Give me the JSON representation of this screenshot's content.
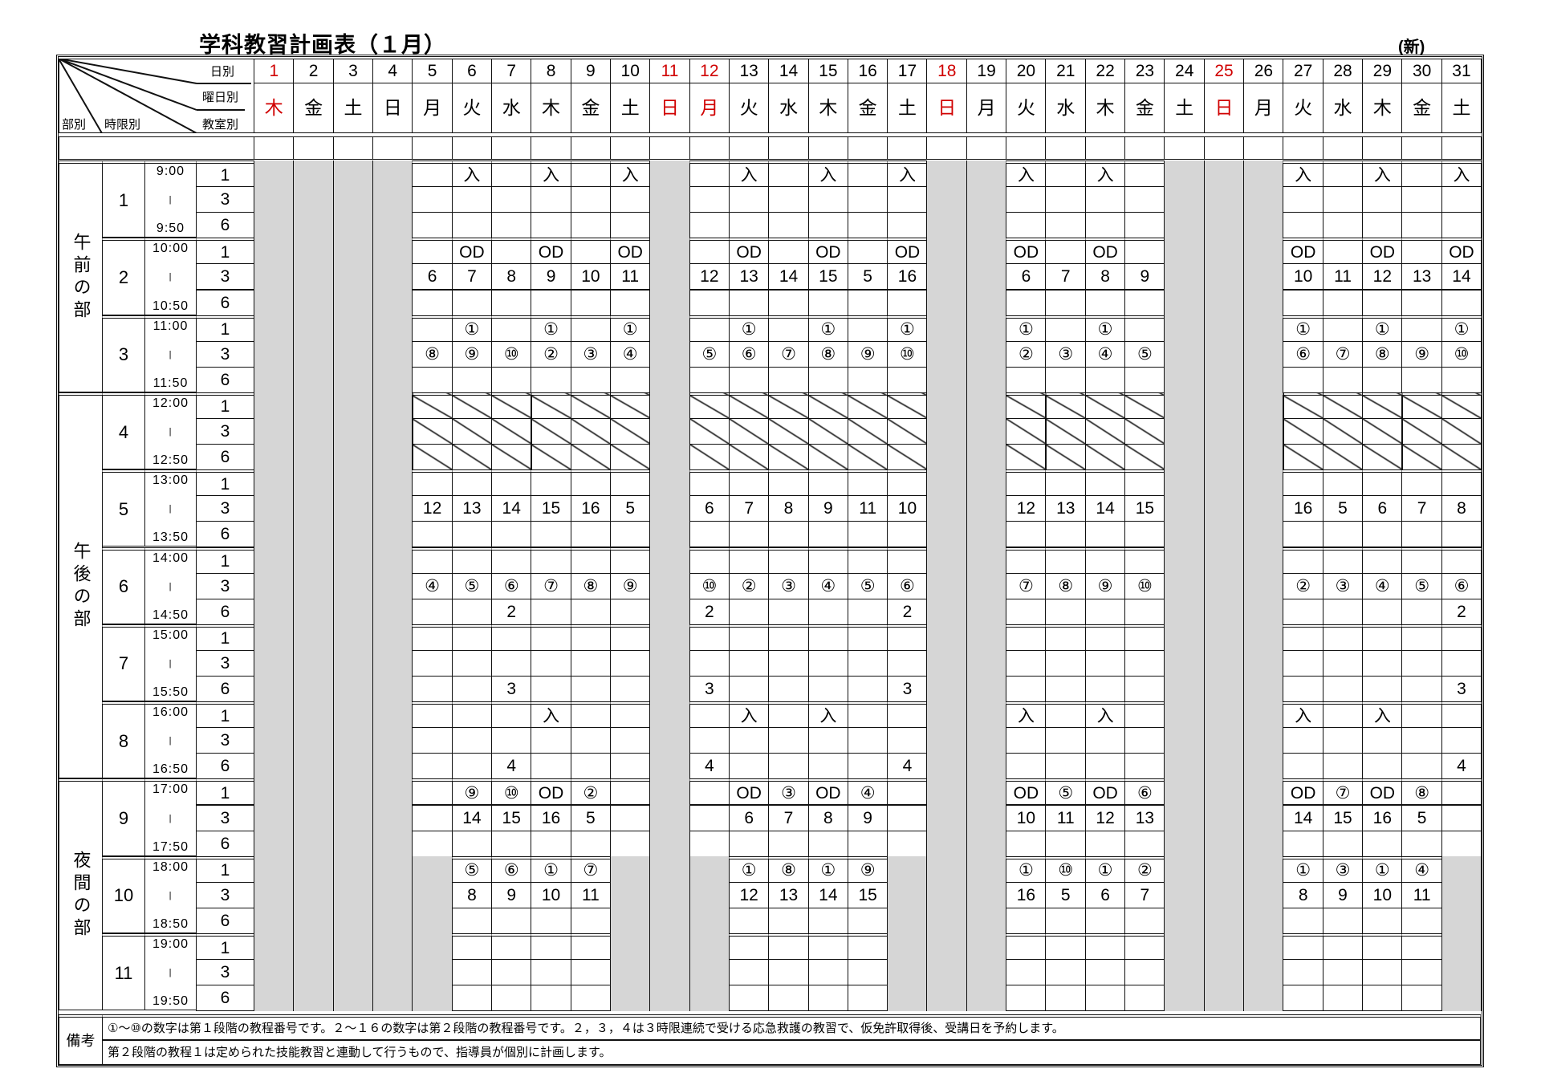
{
  "title": "学科教習計画表（１月）",
  "edition_mark": "(新)",
  "header": {
    "day_label": "日別",
    "weekday_label": "曜日別",
    "room_label": "教室別",
    "section_label": "部別",
    "period_label": "時限別"
  },
  "colors": {
    "holiday": "#d00000",
    "closed": "#d6d6d6"
  },
  "days": [
    {
      "date": "1",
      "weekday": "木",
      "holiday": true
    },
    {
      "date": "2",
      "weekday": "金",
      "holiday": false
    },
    {
      "date": "3",
      "weekday": "土",
      "holiday": false
    },
    {
      "date": "4",
      "weekday": "日",
      "holiday": false
    },
    {
      "date": "5",
      "weekday": "月",
      "holiday": false
    },
    {
      "date": "6",
      "weekday": "火",
      "holiday": false
    },
    {
      "date": "7",
      "weekday": "水",
      "holiday": false
    },
    {
      "date": "8",
      "weekday": "木",
      "holiday": false
    },
    {
      "date": "9",
      "weekday": "金",
      "holiday": false
    },
    {
      "date": "10",
      "weekday": "土",
      "holiday": false
    },
    {
      "date": "11",
      "weekday": "日",
      "holiday": true
    },
    {
      "date": "12",
      "weekday": "月",
      "holiday": true
    },
    {
      "date": "13",
      "weekday": "火",
      "holiday": false
    },
    {
      "date": "14",
      "weekday": "水",
      "holiday": false
    },
    {
      "date": "15",
      "weekday": "木",
      "holiday": false
    },
    {
      "date": "16",
      "weekday": "金",
      "holiday": false
    },
    {
      "date": "17",
      "weekday": "土",
      "holiday": false
    },
    {
      "date": "18",
      "weekday": "日",
      "holiday": true
    },
    {
      "date": "19",
      "weekday": "月",
      "holiday": false
    },
    {
      "date": "20",
      "weekday": "火",
      "holiday": false
    },
    {
      "date": "21",
      "weekday": "水",
      "holiday": false
    },
    {
      "date": "22",
      "weekday": "木",
      "holiday": false
    },
    {
      "date": "23",
      "weekday": "金",
      "holiday": false
    },
    {
      "date": "24",
      "weekday": "土",
      "holiday": false
    },
    {
      "date": "25",
      "weekday": "日",
      "holiday": true
    },
    {
      "date": "26",
      "weekday": "月",
      "holiday": false
    },
    {
      "date": "27",
      "weekday": "火",
      "holiday": false
    },
    {
      "date": "28",
      "weekday": "水",
      "holiday": false
    },
    {
      "date": "29",
      "weekday": "木",
      "holiday": false
    },
    {
      "date": "30",
      "weekday": "金",
      "holiday": false
    },
    {
      "date": "31",
      "weekday": "土",
      "holiday": false
    }
  ],
  "rooms": [
    "1",
    "3",
    "6"
  ],
  "sections": [
    {
      "label": "午前の部",
      "periods": [
        1,
        2,
        3
      ]
    },
    {
      "label": "午後の部",
      "periods": [
        4,
        5,
        6,
        7,
        8
      ]
    },
    {
      "label": "夜間の部",
      "periods": [
        9,
        10,
        11
      ]
    }
  ],
  "periods": [
    {
      "num": "1",
      "start": "9:00",
      "sep": "|",
      "end": "9:50",
      "open_days": [
        5,
        6,
        7,
        8,
        9,
        10,
        12,
        13,
        14,
        15,
        16,
        17,
        20,
        21,
        22,
        23,
        27,
        28,
        29,
        30,
        31
      ],
      "hatched": false,
      "rows": [
        {
          "6": "入",
          "8": "入",
          "10": "入",
          "13": "入",
          "15": "入",
          "17": "入",
          "20": "入",
          "22": "入",
          "27": "入",
          "29": "入",
          "31": "入"
        },
        {},
        {}
      ]
    },
    {
      "num": "2",
      "start": "10:00",
      "sep": "|",
      "end": "10:50",
      "open_days": [
        5,
        6,
        7,
        8,
        9,
        10,
        12,
        13,
        14,
        15,
        16,
        17,
        20,
        21,
        22,
        23,
        27,
        28,
        29,
        30,
        31
      ],
      "hatched": false,
      "rows": [
        {
          "6": "OD",
          "8": "OD",
          "10": "OD",
          "13": "OD",
          "15": "OD",
          "17": "OD",
          "20": "OD",
          "22": "OD",
          "27": "OD",
          "29": "OD",
          "31": "OD"
        },
        {
          "5": "6",
          "6": "7",
          "7": "8",
          "8": "9",
          "9": "10",
          "10": "11",
          "12": "12",
          "13": "13",
          "14": "14",
          "15": "15",
          "16": "5",
          "17": "16",
          "20": "6",
          "21": "7",
          "22": "8",
          "23": "9",
          "27": "10",
          "28": "11",
          "29": "12",
          "30": "13",
          "31": "14"
        },
        {}
      ]
    },
    {
      "num": "3",
      "start": "11:00",
      "sep": "|",
      "end": "11:50",
      "open_days": [
        5,
        6,
        7,
        8,
        9,
        10,
        12,
        13,
        14,
        15,
        16,
        17,
        20,
        21,
        22,
        23,
        27,
        28,
        29,
        30,
        31
      ],
      "hatched": false,
      "rows": [
        {
          "6": "①",
          "8": "①",
          "10": "①",
          "13": "①",
          "15": "①",
          "17": "①",
          "20": "①",
          "22": "①",
          "27": "①",
          "29": "①",
          "31": "①"
        },
        {
          "5": "⑧",
          "6": "⑨",
          "7": "⑩",
          "8": "②",
          "9": "③",
          "10": "④",
          "12": "⑤",
          "13": "⑥",
          "14": "⑦",
          "15": "⑧",
          "16": "⑨",
          "17": "⑩",
          "20": "②",
          "21": "③",
          "22": "④",
          "23": "⑤",
          "27": "⑥",
          "28": "⑦",
          "29": "⑧",
          "30": "⑨",
          "31": "⑩"
        },
        {}
      ]
    },
    {
      "num": "4",
      "start": "12:00",
      "sep": "|",
      "end": "12:50",
      "open_days": [
        5,
        6,
        7,
        8,
        9,
        10,
        12,
        13,
        14,
        15,
        16,
        17,
        20,
        21,
        22,
        23,
        27,
        28,
        29,
        30,
        31
      ],
      "hatched": true,
      "rows": [
        {},
        {},
        {}
      ]
    },
    {
      "num": "5",
      "start": "13:00",
      "sep": "|",
      "end": "13:50",
      "open_days": [
        5,
        6,
        7,
        8,
        9,
        10,
        12,
        13,
        14,
        15,
        16,
        17,
        20,
        21,
        22,
        23,
        27,
        28,
        29,
        30,
        31
      ],
      "hatched": false,
      "rows": [
        {},
        {
          "5": "12",
          "6": "13",
          "7": "14",
          "8": "15",
          "9": "16",
          "10": "5",
          "12": "6",
          "13": "7",
          "14": "8",
          "15": "9",
          "16": "11",
          "17": "10",
          "20": "12",
          "21": "13",
          "22": "14",
          "23": "15",
          "27": "16",
          "28": "5",
          "29": "6",
          "30": "7",
          "31": "8"
        },
        {}
      ]
    },
    {
      "num": "6",
      "start": "14:00",
      "sep": "|",
      "end": "14:50",
      "open_days": [
        5,
        6,
        7,
        8,
        9,
        10,
        12,
        13,
        14,
        15,
        16,
        17,
        20,
        21,
        22,
        23,
        27,
        28,
        29,
        30,
        31
      ],
      "hatched": false,
      "rows": [
        {},
        {
          "5": "④",
          "6": "⑤",
          "7": "⑥",
          "8": "⑦",
          "9": "⑧",
          "10": "⑨",
          "12": "⑩",
          "13": "②",
          "14": "③",
          "15": "④",
          "16": "⑤",
          "17": "⑥",
          "20": "⑦",
          "21": "⑧",
          "22": "⑨",
          "23": "⑩",
          "27": "②",
          "28": "③",
          "29": "④",
          "30": "⑤",
          "31": "⑥"
        },
        {
          "7": "2",
          "12": "2",
          "17": "2",
          "31": "2"
        }
      ]
    },
    {
      "num": "7",
      "start": "15:00",
      "sep": "|",
      "end": "15:50",
      "open_days": [
        5,
        6,
        7,
        8,
        9,
        10,
        12,
        13,
        14,
        15,
        16,
        17,
        20,
        21,
        22,
        23,
        27,
        28,
        29,
        30,
        31
      ],
      "hatched": false,
      "rows": [
        {},
        {},
        {
          "7": "3",
          "12": "3",
          "17": "3",
          "31": "3"
        }
      ]
    },
    {
      "num": "8",
      "start": "16:00",
      "sep": "|",
      "end": "16:50",
      "open_days": [
        5,
        6,
        7,
        8,
        9,
        10,
        12,
        13,
        14,
        15,
        16,
        17,
        20,
        21,
        22,
        23,
        27,
        28,
        29,
        30,
        31
      ],
      "hatched": false,
      "rows": [
        {
          "8": "入",
          "13": "入",
          "15": "入",
          "20": "入",
          "22": "入",
          "27": "入",
          "29": "入"
        },
        {},
        {
          "7": "4",
          "12": "4",
          "17": "4",
          "31": "4"
        }
      ]
    },
    {
      "num": "9",
      "start": "17:00",
      "sep": "|",
      "end": "17:50",
      "open_days": [
        5,
        6,
        7,
        8,
        9,
        10,
        12,
        13,
        14,
        15,
        16,
        17,
        20,
        21,
        22,
        23,
        27,
        28,
        29,
        30,
        31
      ],
      "hatched": false,
      "rows": [
        {
          "6": "⑨",
          "7": "⑩",
          "8": "OD",
          "9": "②",
          "13": "OD",
          "14": "③",
          "15": "OD",
          "16": "④",
          "20": "OD",
          "21": "⑤",
          "22": "OD",
          "23": "⑥",
          "27": "OD",
          "28": "⑦",
          "29": "OD",
          "30": "⑧"
        },
        {
          "6": "14",
          "7": "15",
          "8": "16",
          "9": "5",
          "13": "6",
          "14": "7",
          "15": "8",
          "16": "9",
          "20": "10",
          "21": "11",
          "22": "12",
          "23": "13",
          "27": "14",
          "28": "15",
          "29": "16",
          "30": "5"
        },
        {}
      ]
    },
    {
      "num": "10",
      "start": "18:00",
      "sep": "|",
      "end": "18:50",
      "open_days": [
        6,
        7,
        8,
        9,
        13,
        14,
        15,
        16,
        20,
        21,
        22,
        23,
        27,
        28,
        29,
        30
      ],
      "hatched": false,
      "rows": [
        {
          "6": "⑤",
          "7": "⑥",
          "8": "①",
          "9": "⑦",
          "13": "①",
          "14": "⑧",
          "15": "①",
          "16": "⑨",
          "20": "①",
          "21": "⑩",
          "22": "①",
          "23": "②",
          "27": "①",
          "28": "③",
          "29": "①",
          "30": "④"
        },
        {
          "6": "8",
          "7": "9",
          "8": "10",
          "9": "11",
          "13": "12",
          "14": "13",
          "15": "14",
          "16": "15",
          "20": "16",
          "21": "5",
          "22": "6",
          "23": "7",
          "27": "8",
          "28": "9",
          "29": "10",
          "30": "11"
        },
        {}
      ]
    },
    {
      "num": "11",
      "start": "19:00",
      "sep": "|",
      "end": "19:50",
      "open_days": [
        6,
        7,
        8,
        9,
        13,
        14,
        15,
        16,
        20,
        21,
        22,
        23,
        27,
        28,
        29,
        30
      ],
      "hatched": false,
      "rows": [
        {},
        {},
        {}
      ]
    }
  ],
  "notes": {
    "label": "備考",
    "lines": [
      "①～⑩の数字は第１段階の教程番号です。２～１６の数字は第２段階の教程番号です。２，３，４は３時限連続で受ける応急救護の教習で、仮免許取得後、受講日を予約します。",
      "第２段階の教程１は定められた技能教習と連動して行うもので、指導員が個別に計画します。"
    ]
  }
}
